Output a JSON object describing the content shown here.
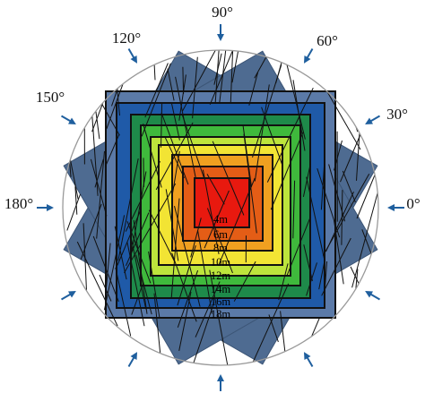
{
  "angles": [
    {
      "key": "a90",
      "label": "90°"
    },
    {
      "key": "a60",
      "label": "60°"
    },
    {
      "key": "a120",
      "label": "120°"
    },
    {
      "key": "a30",
      "label": "30°"
    },
    {
      "key": "a150",
      "label": "150°"
    },
    {
      "key": "a0",
      "label": "0°"
    },
    {
      "key": "a180",
      "label": "180°"
    }
  ],
  "depth_labels": [
    "4m",
    "6m",
    "8m",
    "10m",
    "12m",
    "14m",
    "16m",
    "18m"
  ],
  "colors": {
    "circle": "#9a9a9a",
    "rotated_square": "#4e6b91",
    "arrow": "#1f5f9e",
    "outline": "#111111",
    "levels": [
      "#5b7aa8",
      "#1f5aa8",
      "#1e8a4a",
      "#3fb93c",
      "#bde43c",
      "#f2e434",
      "#f0a020",
      "#e45d16",
      "#e8190f"
    ]
  },
  "rotations_deg": [
    0,
    30,
    60
  ]
}
